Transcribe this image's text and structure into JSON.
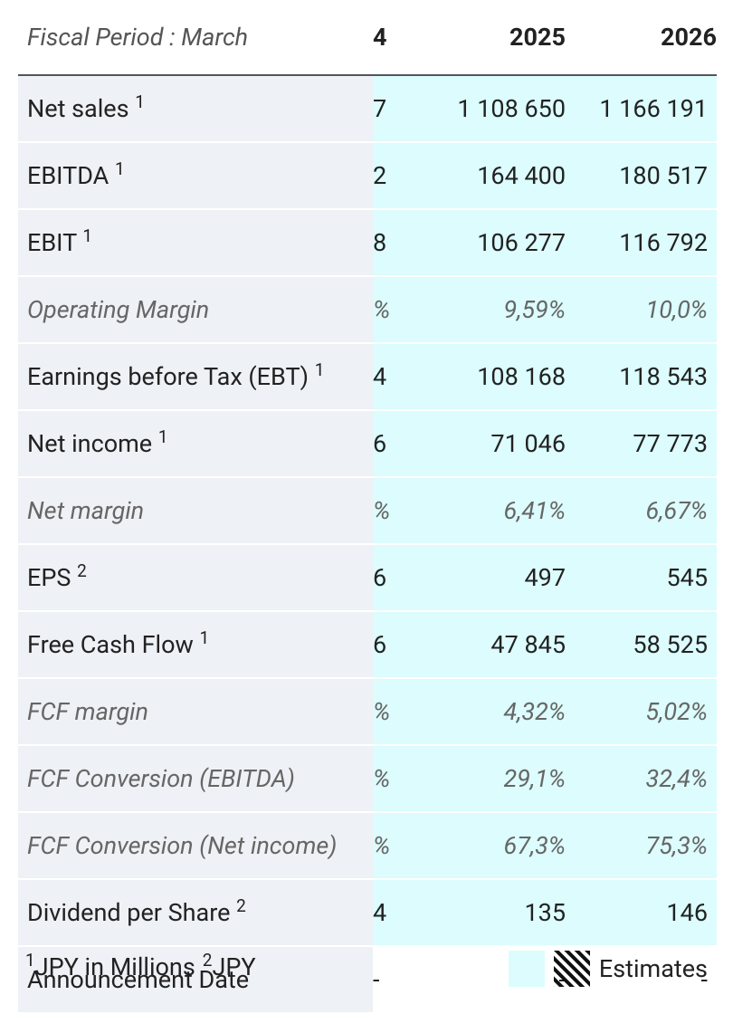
{
  "table": {
    "header": [
      "Fiscal Period : March",
      "4",
      "2025",
      "2026"
    ],
    "rows": [
      {
        "label": "Net sales",
        "note": "1",
        "cells": [
          "7",
          "1 108 650",
          "1 166 191"
        ]
      },
      {
        "label": "EBITDA",
        "note": "1",
        "cells": [
          "2",
          "164 400",
          "180 517"
        ]
      },
      {
        "label": "EBIT",
        "note": "1",
        "cells": [
          "8",
          "106 277",
          "116 792"
        ]
      },
      {
        "label": "Operating Margin",
        "italic": true,
        "cells": [
          "%",
          "9,59%",
          "10,0%"
        ]
      },
      {
        "label": "Earnings before Tax (EBT)",
        "note": "1",
        "cells": [
          "4",
          "108 168",
          "118 543"
        ]
      },
      {
        "label": "Net income",
        "note": "1",
        "cells": [
          "6",
          "71 046",
          "77 773"
        ]
      },
      {
        "label": "Net margin",
        "italic": true,
        "cells": [
          "%",
          "6,41%",
          "6,67%"
        ]
      },
      {
        "label": "EPS",
        "note": "2",
        "cells": [
          "6",
          "497",
          "545"
        ]
      },
      {
        "label": "Free Cash Flow",
        "note": "1",
        "cells": [
          "6",
          "47 845",
          "58 525"
        ]
      },
      {
        "label": "FCF margin",
        "italic": true,
        "cells": [
          "%",
          "4,32%",
          "5,02%"
        ]
      },
      {
        "label": "FCF Conversion (EBITDA)",
        "italic": true,
        "cells": [
          "%",
          "29,1%",
          "32,4%"
        ]
      },
      {
        "label": "FCF Conversion (Net income)",
        "italic": true,
        "cells": [
          "%",
          "67,3%",
          "75,3%"
        ]
      },
      {
        "label": "Dividend per Share",
        "note": "2",
        "cells": [
          "4",
          "135",
          "146"
        ]
      },
      {
        "label": "Announcement Date",
        "estimate": false,
        "cells": [
          "-",
          "-",
          "-"
        ]
      }
    ]
  },
  "footer": {
    "notes": [
      {
        "mark": "1",
        "text": "JPY in Millions"
      },
      {
        "mark": "2",
        "text": "JPY"
      }
    ],
    "legend": "Estimates"
  }
}
